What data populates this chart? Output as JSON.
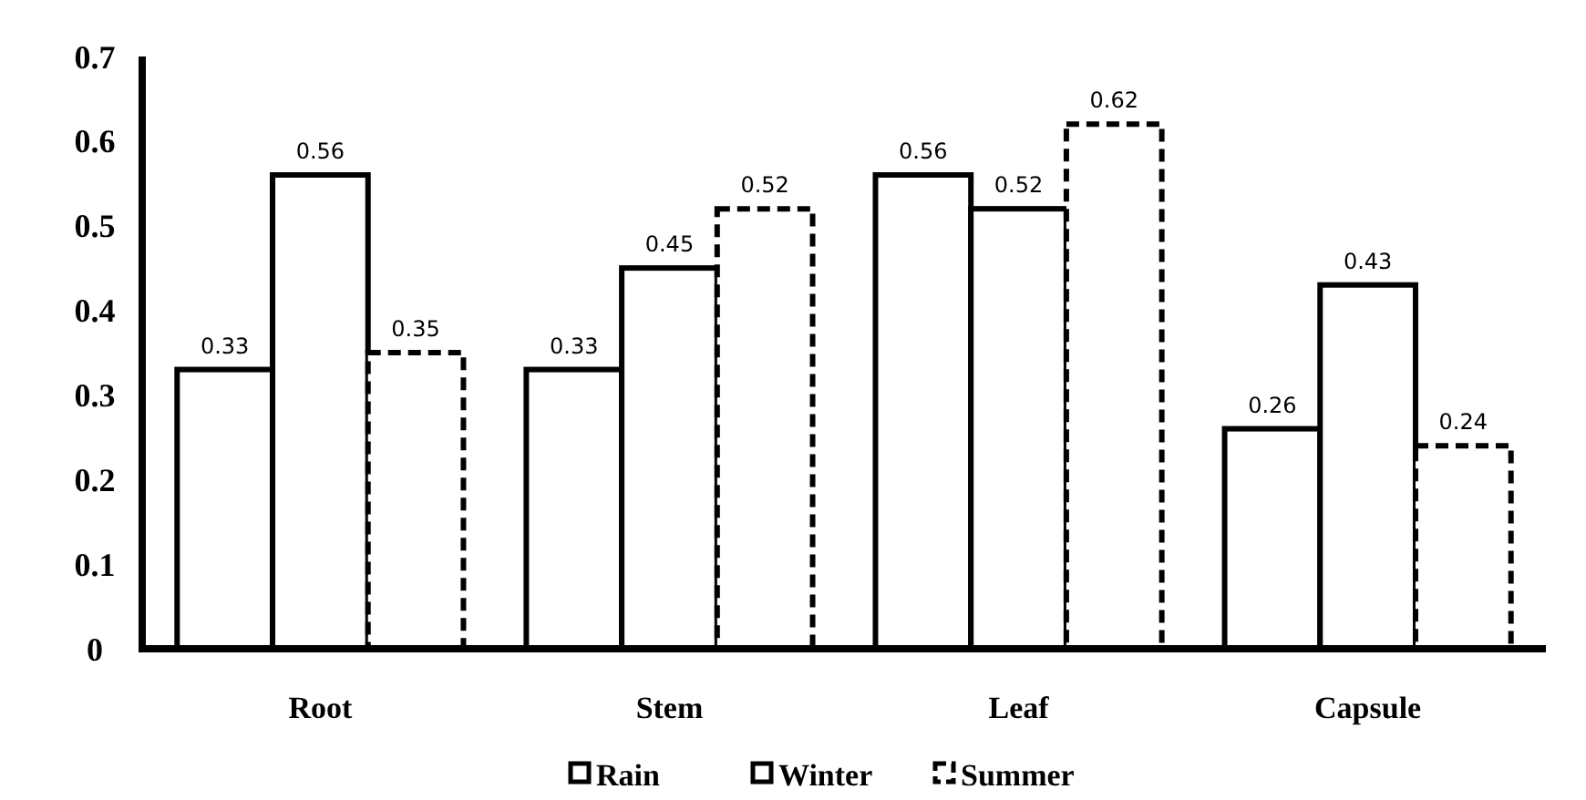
{
  "chart_data": {
    "type": "bar",
    "categories": [
      "Root",
      "Stem",
      "Leaf",
      "Capsule"
    ],
    "series": [
      {
        "name": "Rain",
        "color": "#000000",
        "line_style": "solid",
        "values": [
          0.33,
          0.33,
          0.56,
          0.26
        ]
      },
      {
        "name": "Winter",
        "color": "#000000",
        "line_style": "solid",
        "values": [
          0.56,
          0.45,
          0.52,
          0.43
        ]
      },
      {
        "name": "Summer",
        "color": "#000000",
        "line_style": "dashed",
        "values": [
          0.35,
          0.52,
          0.62,
          0.24
        ]
      }
    ],
    "ylim": [
      0,
      0.7
    ],
    "yticks": [
      0,
      0.1,
      0.2,
      0.3,
      0.4,
      0.5,
      0.6,
      0.7
    ],
    "grid": false,
    "legend": "bottom",
    "data_labels": true
  }
}
